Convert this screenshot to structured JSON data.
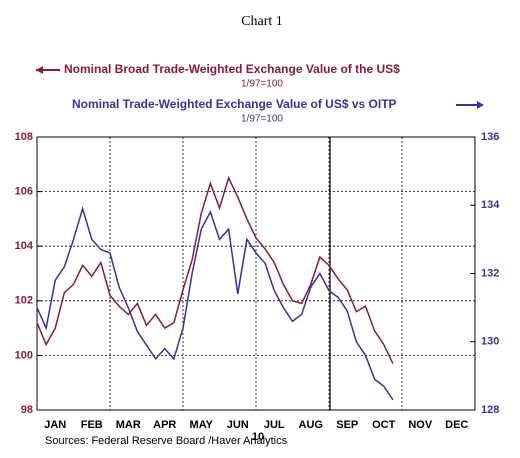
{
  "chart_data": {
    "type": "line",
    "title": "Chart 1",
    "categories": [
      "JAN",
      "FEB",
      "MAR",
      "APR",
      "MAY",
      "JUN",
      "JUL",
      "AUG",
      "SEP",
      "OCT",
      "NOV",
      "DEC"
    ],
    "year_label": "10",
    "source": "Sources:  Federal Reserve Board /Haver Analytics",
    "x": [
      0,
      0.25,
      0.5,
      0.75,
      1,
      1.25,
      1.5,
      1.75,
      2,
      2.25,
      2.5,
      2.75,
      3,
      3.25,
      3.5,
      3.75,
      4,
      4.25,
      4.5,
      4.75,
      5,
      5.25,
      5.5,
      5.75,
      6,
      6.25,
      6.5,
      6.75,
      7,
      7.25,
      7.5,
      7.75,
      8,
      8.25,
      8.5,
      8.75,
      9,
      9.25,
      9.5,
      9.75
    ],
    "xlim": [
      0,
      12
    ],
    "xticks": [
      0,
      2,
      4,
      6,
      8,
      10,
      12
    ],
    "ylim": [
      98,
      108
    ],
    "yticks": [
      98,
      100,
      102,
      104,
      106,
      108
    ],
    "y2lim": [
      128,
      136
    ],
    "y2ticks": [
      128,
      130,
      132,
      134,
      136
    ],
    "grid": true,
    "series": [
      {
        "name": "Nominal Broad Trade-Weighted Exchange Value of the US$",
        "subtitle": "1/97=100",
        "color": "#8b1a3a",
        "axis": "y",
        "values": [
          101.2,
          100.4,
          101.0,
          102.3,
          102.6,
          103.3,
          102.9,
          103.4,
          102.2,
          101.8,
          101.5,
          101.9,
          101.1,
          101.5,
          101.0,
          101.2,
          102.4,
          103.5,
          105.2,
          106.3,
          105.4,
          106.5,
          105.8,
          105.0,
          104.3,
          103.9,
          103.4,
          102.6,
          102.0,
          101.9,
          102.6,
          103.6,
          103.3,
          102.8,
          102.4,
          101.6,
          101.8,
          100.9,
          100.4,
          99.7
        ]
      },
      {
        "name": "Nominal Trade-Weighted Exchange Value of US$ vs OITP",
        "subtitle": "1/97=100",
        "color": "#3d2fa0",
        "axis": "y2",
        "values": [
          131.0,
          130.4,
          131.8,
          132.2,
          133.0,
          133.9,
          133.0,
          132.7,
          132.6,
          131.6,
          131.0,
          130.3,
          129.9,
          129.5,
          129.8,
          129.5,
          130.4,
          132.0,
          133.3,
          133.8,
          133.0,
          133.3,
          131.4,
          133.0,
          132.6,
          132.3,
          131.5,
          131.0,
          130.6,
          130.8,
          131.6,
          132.0,
          131.5,
          131.3,
          130.9,
          130.0,
          129.6,
          128.9,
          128.7,
          128.3
        ]
      }
    ]
  }
}
